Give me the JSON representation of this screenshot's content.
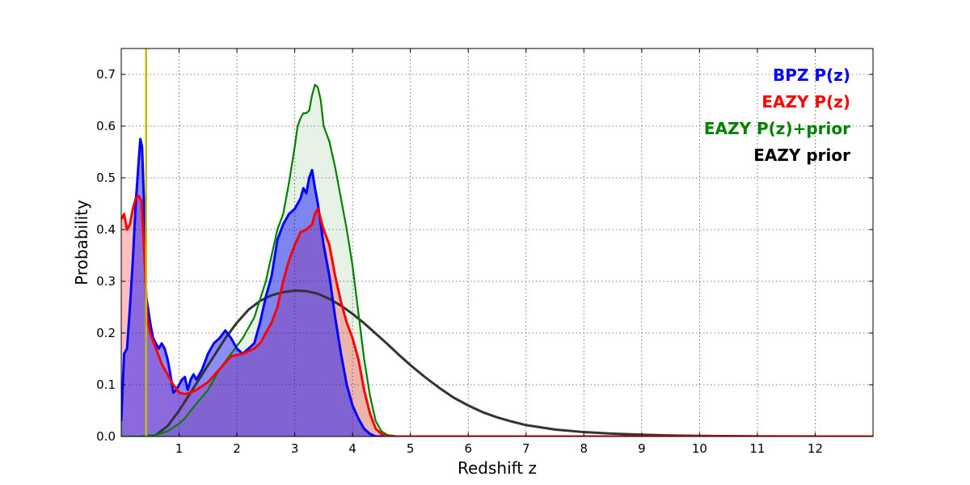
{
  "chart_data": {
    "type": "area",
    "xlabel": "Redshift z",
    "ylabel": "Probability",
    "xlim": [
      0,
      13
    ],
    "ylim": [
      0,
      0.75
    ],
    "xticks": [
      1,
      2,
      3,
      4,
      5,
      6,
      7,
      8,
      9,
      10,
      11,
      12
    ],
    "yticks": [
      0.0,
      0.1,
      0.2,
      0.3,
      0.4,
      0.5,
      0.6,
      0.7
    ],
    "xtick_labels": [
      "1",
      "2",
      "3",
      "4",
      "5",
      "6",
      "7",
      "8",
      "9",
      "10",
      "11",
      "12"
    ],
    "ytick_labels": [
      "0.0",
      "0.1",
      "0.2",
      "0.3",
      "0.4",
      "0.5",
      "0.6",
      "0.7"
    ],
    "grid": true,
    "legend_position": "top-right",
    "vertical_line": {
      "x": 0.43,
      "color": "#bfbf00"
    },
    "series": [
      {
        "name": "EAZY prior",
        "color": "#333333",
        "fill": null,
        "x": [
          0.6,
          0.8,
          1.0,
          1.2,
          1.4,
          1.6,
          1.8,
          2.0,
          2.2,
          2.4,
          2.6,
          2.8,
          3.0,
          3.2,
          3.4,
          3.6,
          3.8,
          4.0,
          4.2,
          4.4,
          4.6,
          4.8,
          5.0,
          5.25,
          5.5,
          5.75,
          6.0,
          6.25,
          6.5,
          6.75,
          7.0,
          7.5,
          8.0,
          8.5,
          9.0,
          9.5,
          10.0,
          10.5,
          11.0,
          11.5,
          12.0
        ],
        "y": [
          0.003,
          0.02,
          0.05,
          0.085,
          0.12,
          0.155,
          0.19,
          0.22,
          0.245,
          0.262,
          0.273,
          0.279,
          0.282,
          0.281,
          0.276,
          0.266,
          0.253,
          0.237,
          0.219,
          0.199,
          0.179,
          0.158,
          0.138,
          0.115,
          0.094,
          0.075,
          0.06,
          0.047,
          0.037,
          0.029,
          0.022,
          0.0135,
          0.0085,
          0.0055,
          0.0035,
          0.002,
          0.0012,
          0.0007,
          0.0004,
          0.0002,
          0.0001
        ]
      },
      {
        "name": "EAZY P(z)+prior",
        "color": "#008000",
        "fill": "rgba(0,128,0,0.1)",
        "x": [
          0.0,
          0.3,
          0.6,
          0.8,
          1.0,
          1.1,
          1.2,
          1.35,
          1.5,
          1.7,
          1.9,
          2.1,
          2.3,
          2.5,
          2.7,
          2.8,
          2.9,
          3.0,
          3.05,
          3.1,
          3.15,
          3.2,
          3.25,
          3.3,
          3.35,
          3.4,
          3.45,
          3.5,
          3.6,
          3.7,
          3.8,
          3.9,
          4.0,
          4.1,
          4.2,
          4.3,
          4.4,
          4.5,
          4.6,
          4.8,
          5.0,
          6.0,
          8.0,
          10.0,
          12.0,
          13.0
        ],
        "y": [
          0.0,
          0.0,
          0.003,
          0.01,
          0.025,
          0.035,
          0.05,
          0.07,
          0.09,
          0.13,
          0.16,
          0.19,
          0.23,
          0.3,
          0.4,
          0.43,
          0.49,
          0.56,
          0.6,
          0.615,
          0.625,
          0.625,
          0.63,
          0.66,
          0.68,
          0.675,
          0.65,
          0.6,
          0.57,
          0.52,
          0.46,
          0.4,
          0.33,
          0.24,
          0.15,
          0.08,
          0.03,
          0.01,
          0.003,
          0.0,
          0.0,
          0.0,
          0.0,
          0.0,
          0.0,
          0.0
        ]
      },
      {
        "name": "EAZY P(z)",
        "color": "#ff0000",
        "fill": "rgba(255,0,0,0.25)",
        "x": [
          0.0,
          0.05,
          0.1,
          0.15,
          0.2,
          0.25,
          0.3,
          0.35,
          0.4,
          0.45,
          0.5,
          0.6,
          0.7,
          0.8,
          0.9,
          1.0,
          1.1,
          1.2,
          1.3,
          1.5,
          1.7,
          1.9,
          2.1,
          2.3,
          2.4,
          2.5,
          2.6,
          2.7,
          2.8,
          2.9,
          3.0,
          3.1,
          3.2,
          3.3,
          3.35,
          3.4,
          3.45,
          3.5,
          3.6,
          3.7,
          3.8,
          3.9,
          4.0,
          4.1,
          4.2,
          4.3,
          4.4,
          4.5,
          4.6,
          4.8,
          5.0,
          13.0
        ],
        "y": [
          0.42,
          0.43,
          0.4,
          0.41,
          0.44,
          0.46,
          0.465,
          0.455,
          0.35,
          0.23,
          0.2,
          0.17,
          0.14,
          0.12,
          0.1,
          0.085,
          0.082,
          0.085,
          0.09,
          0.105,
          0.13,
          0.155,
          0.16,
          0.17,
          0.18,
          0.2,
          0.22,
          0.25,
          0.3,
          0.34,
          0.37,
          0.395,
          0.4,
          0.41,
          0.43,
          0.44,
          0.42,
          0.4,
          0.37,
          0.31,
          0.26,
          0.22,
          0.19,
          0.15,
          0.09,
          0.045,
          0.015,
          0.005,
          0.0,
          0.0,
          0.0,
          0.0
        ]
      },
      {
        "name": "BPZ P(z)",
        "color": "#0000ff",
        "fill": "rgba(0,0,255,0.45)",
        "x": [
          0.0,
          0.05,
          0.1,
          0.15,
          0.2,
          0.25,
          0.3,
          0.33,
          0.36,
          0.4,
          0.43,
          0.46,
          0.5,
          0.55,
          0.6,
          0.65,
          0.7,
          0.75,
          0.8,
          0.85,
          0.9,
          0.95,
          1.0,
          1.05,
          1.1,
          1.15,
          1.2,
          1.25,
          1.3,
          1.4,
          1.5,
          1.6,
          1.7,
          1.8,
          1.9,
          2.0,
          2.1,
          2.2,
          2.3,
          2.4,
          2.5,
          2.6,
          2.7,
          2.8,
          2.9,
          3.0,
          3.1,
          3.15,
          3.2,
          3.25,
          3.3,
          3.35,
          3.4,
          3.5,
          3.6,
          3.7,
          3.8,
          3.9,
          4.0,
          4.1,
          4.2,
          4.3,
          4.4,
          4.6,
          5.0,
          13.0
        ],
        "y": [
          0.03,
          0.16,
          0.17,
          0.25,
          0.34,
          0.45,
          0.53,
          0.575,
          0.56,
          0.43,
          0.27,
          0.25,
          0.22,
          0.19,
          0.18,
          0.17,
          0.18,
          0.17,
          0.15,
          0.12,
          0.085,
          0.09,
          0.1,
          0.11,
          0.115,
          0.09,
          0.11,
          0.12,
          0.11,
          0.13,
          0.16,
          0.18,
          0.19,
          0.205,
          0.19,
          0.17,
          0.16,
          0.17,
          0.18,
          0.22,
          0.27,
          0.31,
          0.38,
          0.41,
          0.43,
          0.44,
          0.46,
          0.48,
          0.47,
          0.5,
          0.515,
          0.48,
          0.45,
          0.37,
          0.31,
          0.23,
          0.16,
          0.1,
          0.06,
          0.035,
          0.015,
          0.005,
          0.0,
          0.0,
          0.0,
          0.0
        ]
      }
    ],
    "legend": [
      {
        "label": "BPZ P(z)",
        "color": "#0000ff"
      },
      {
        "label": "EAZY P(z)",
        "color": "#ff0000"
      },
      {
        "label": "EAZY P(z)+prior",
        "color": "#008000"
      },
      {
        "label": "EAZY prior",
        "color": "#000000"
      }
    ]
  }
}
